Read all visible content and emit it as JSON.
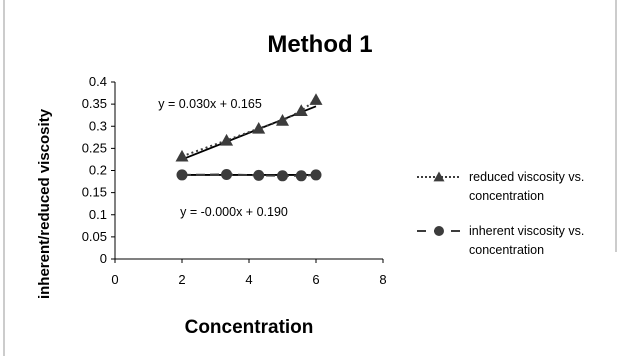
{
  "chart_data": {
    "type": "line",
    "title": "Method 1",
    "xlabel": "Concentration",
    "ylabel": "inherent/reduced viscosity",
    "xlim": [
      0,
      8
    ],
    "ylim": [
      0,
      0.4
    ],
    "x_ticks": [
      "0",
      "2",
      "4",
      "6",
      "8"
    ],
    "y_ticks": [
      "0",
      "0.05",
      "0.1",
      "0.15",
      "0.2",
      "0.25",
      "0.3",
      "0.35",
      "0.4"
    ],
    "grid": false,
    "legend_position": "right",
    "series": [
      {
        "name": "reduced viscosity vs. concentration",
        "legend_lines": [
          "reduced viscosity vs.",
          "concentration"
        ],
        "marker": "triangle",
        "line_style": "dotted",
        "x": [
          2,
          3.33,
          4.29,
          5,
          5.56,
          6
        ],
        "y": [
          0.232,
          0.268,
          0.295,
          0.313,
          0.335,
          0.36
        ],
        "trendline": {
          "equation": "y = 0.030x + 0.165",
          "slope": 0.03,
          "intercept": 0.165
        }
      },
      {
        "name": "inherent viscosity vs. concentration",
        "legend_lines": [
          "inherent viscosity vs.",
          "concentration"
        ],
        "marker": "circle",
        "line_style": "dashed",
        "x": [
          2,
          3.33,
          4.29,
          5,
          5.56,
          6
        ],
        "y": [
          0.19,
          0.191,
          0.189,
          0.188,
          0.188,
          0.19
        ],
        "trendline": {
          "equation": "y = -0.000x + 0.190",
          "slope": 0,
          "intercept": 0.19
        }
      }
    ],
    "colors": {
      "marker": "#3c3c3c",
      "trendline": "#000000",
      "axis": "#000000",
      "border": "#808080",
      "text": "#000000"
    }
  }
}
